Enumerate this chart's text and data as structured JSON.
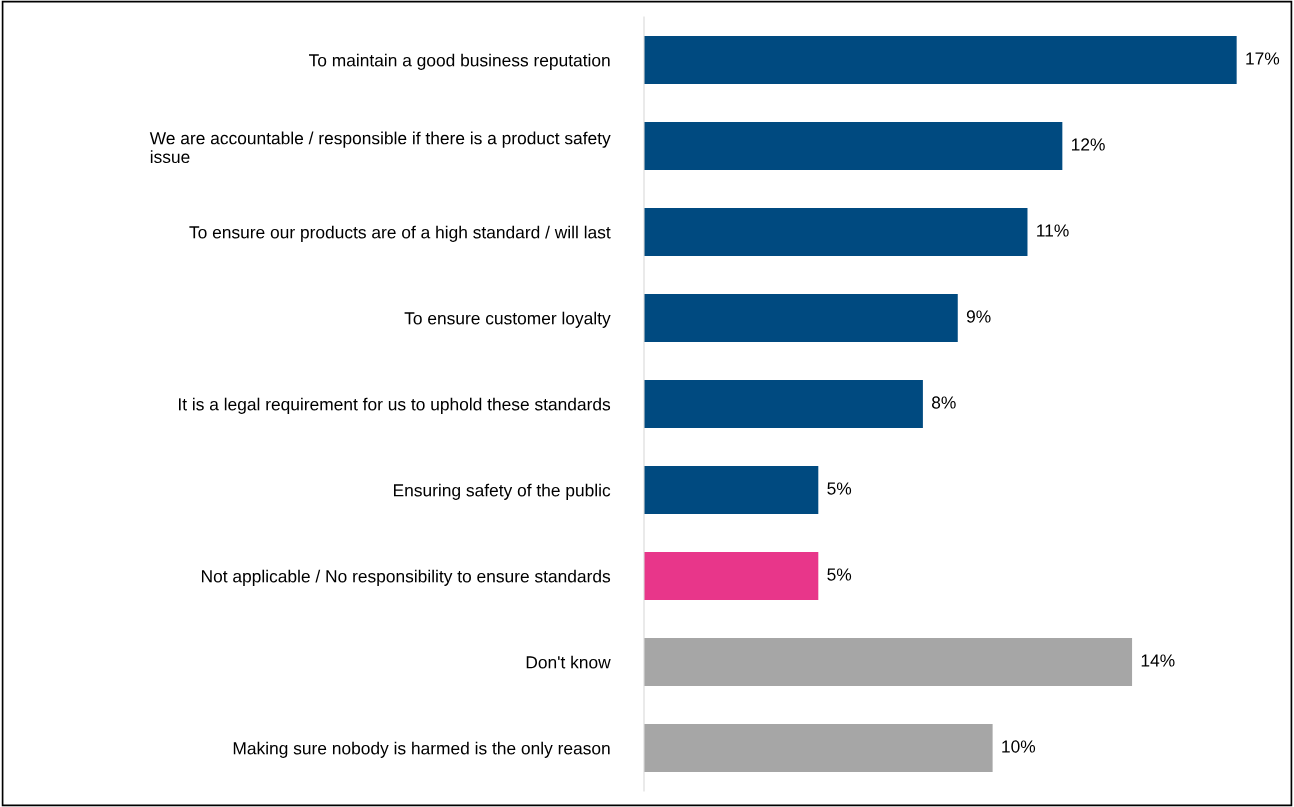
{
  "chart_data": {
    "type": "bar",
    "orientation": "horizontal",
    "categories": [
      "To maintain a good business reputation",
      "We are accountable / responsible if there is a product safety\nissue",
      "To ensure our products are of a high standard / will last",
      "To ensure customer loyalty",
      "It is a legal requirement for us to uphold these standards",
      "Ensuring safety of the public",
      "Not applicable / No responsibility to ensure standards",
      "Don't know",
      "Making sure nobody is harmed is the only reason"
    ],
    "values": [
      17,
      12,
      11,
      9,
      8,
      5,
      5,
      14,
      10
    ],
    "value_labels": [
      "17%",
      "12%",
      "11%",
      "9%",
      "8%",
      "5%",
      "5%",
      "14%",
      "10%"
    ],
    "colors": [
      "#004a80",
      "#004a80",
      "#004a80",
      "#004a80",
      "#004a80",
      "#004a80",
      "#e8368a",
      "#a6a6a6",
      "#a6a6a6"
    ],
    "grid": false,
    "legend": false
  }
}
